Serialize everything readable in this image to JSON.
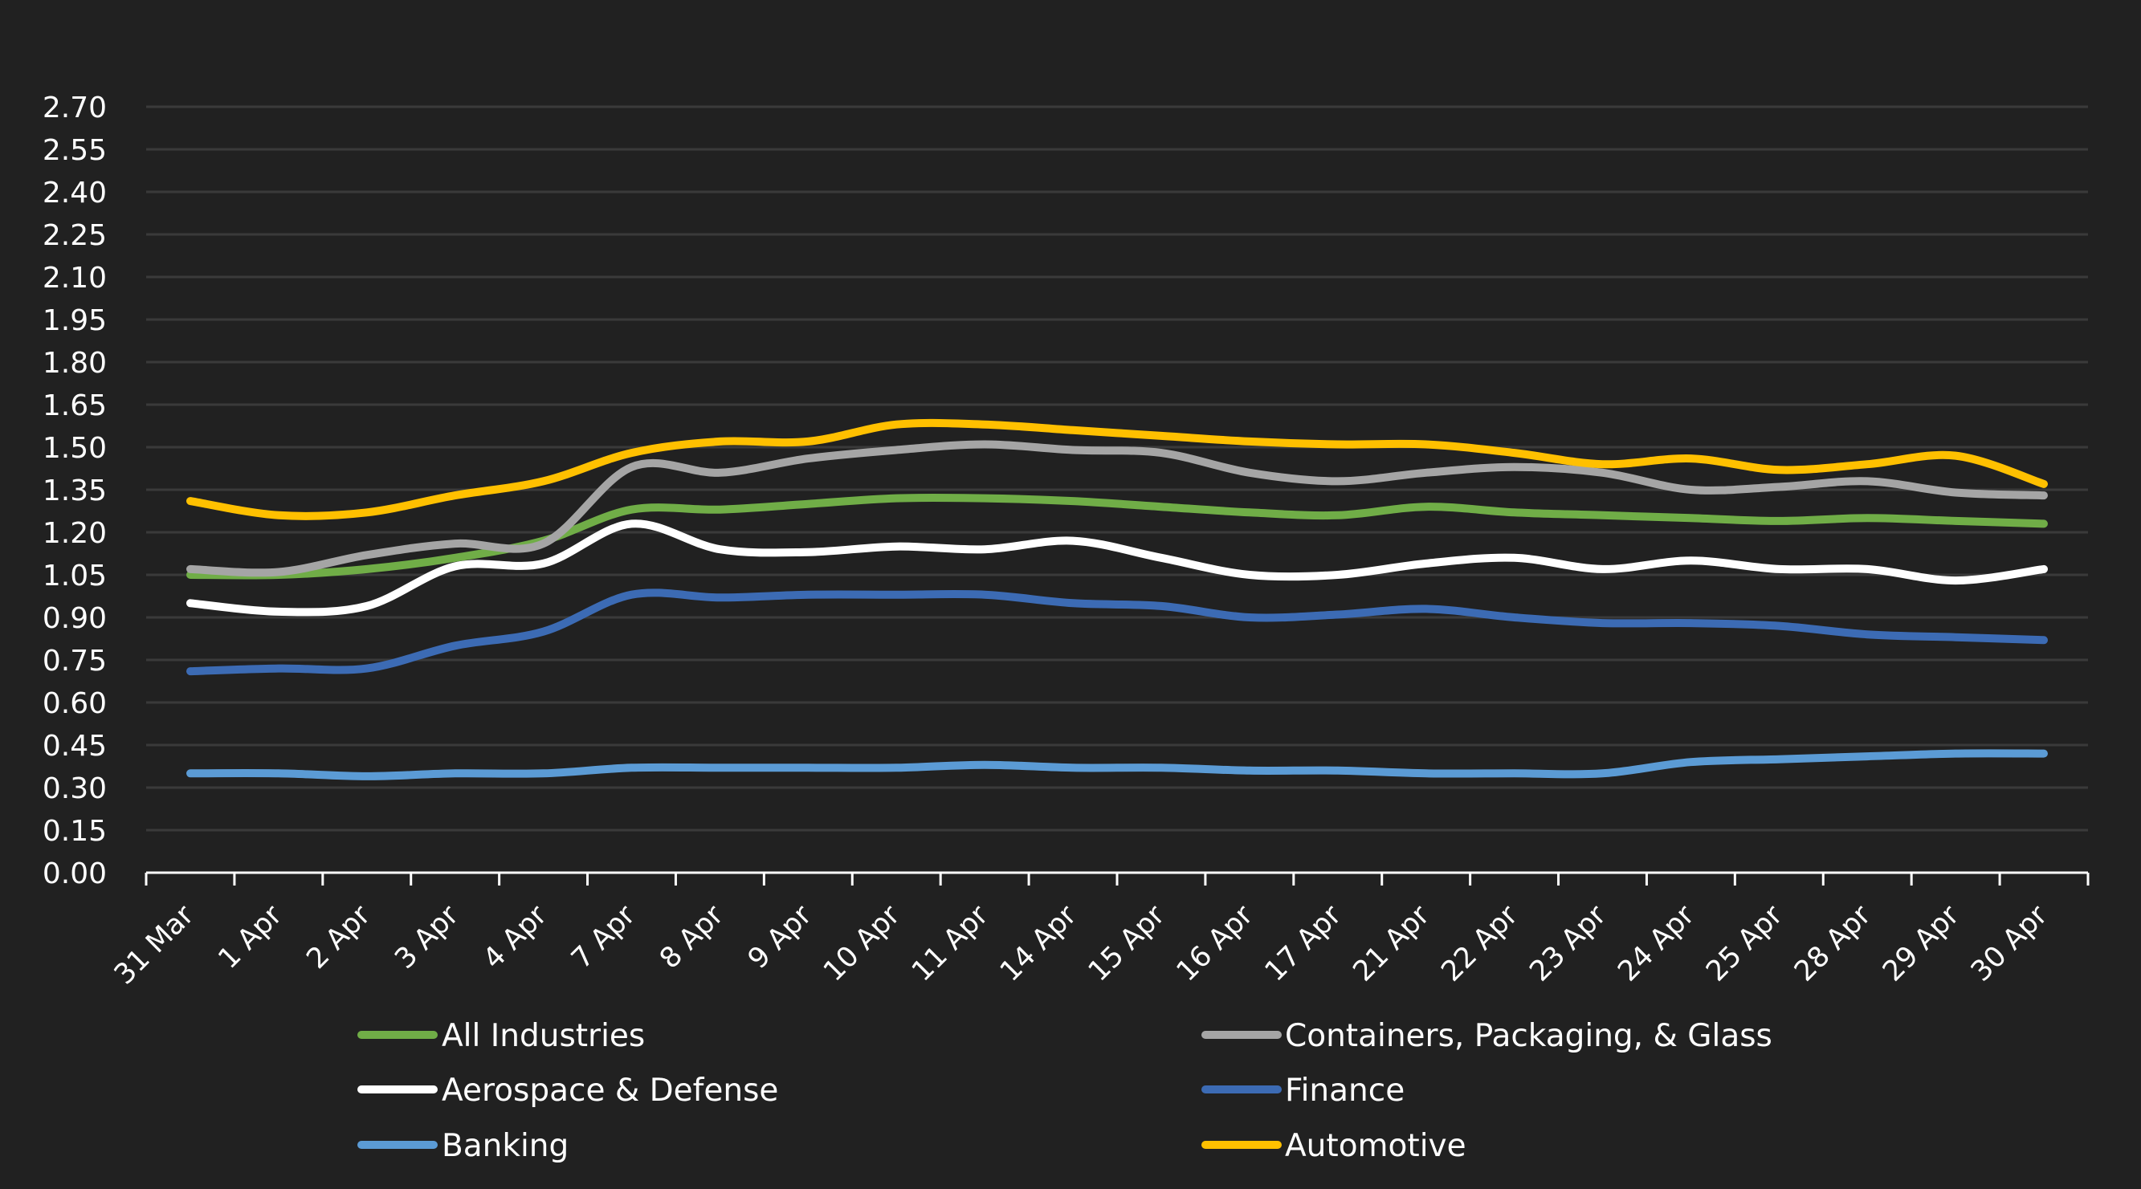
{
  "chart_data": {
    "type": "line",
    "title": "",
    "xlabel": "",
    "ylabel": "",
    "ylim": [
      0,
      2.7
    ],
    "ytick_step": 0.15,
    "yticks": [
      "0.00",
      "0.15",
      "0.30",
      "0.45",
      "0.60",
      "0.75",
      "0.90",
      "1.05",
      "1.20",
      "1.35",
      "1.50",
      "1.65",
      "1.80",
      "1.95",
      "2.10",
      "2.25",
      "2.40",
      "2.55",
      "2.70"
    ],
    "grid": true,
    "legend_position": "bottom",
    "categories": [
      "31 Mar",
      "1 Apr",
      "2 Apr",
      "3 Apr",
      "4 Apr",
      "7 Apr",
      "8 Apr",
      "9 Apr",
      "10 Apr",
      "11 Apr",
      "14 Apr",
      "15 Apr",
      "16 Apr",
      "17 Apr",
      "21 Apr",
      "22 Apr",
      "23 Apr",
      "24 Apr",
      "25 Apr",
      "28 Apr",
      "29 Apr",
      "30 Apr"
    ],
    "series": [
      {
        "name": "All Industries",
        "color": "#70AD47",
        "values": [
          1.05,
          1.05,
          1.07,
          1.11,
          1.17,
          1.28,
          1.28,
          1.3,
          1.32,
          1.32,
          1.31,
          1.29,
          1.27,
          1.26,
          1.29,
          1.27,
          1.26,
          1.25,
          1.24,
          1.25,
          1.24,
          1.23
        ]
      },
      {
        "name": "Containers, Packaging, & Glass",
        "color": "#A5A5A5",
        "values": [
          1.07,
          1.06,
          1.12,
          1.16,
          1.16,
          1.43,
          1.41,
          1.46,
          1.49,
          1.51,
          1.49,
          1.48,
          1.41,
          1.38,
          1.41,
          1.43,
          1.41,
          1.35,
          1.36,
          1.38,
          1.34,
          1.33
        ]
      },
      {
        "name": "Aerospace & Defense",
        "color": "#FFFFFF",
        "values": [
          0.95,
          0.92,
          0.94,
          1.08,
          1.09,
          1.23,
          1.14,
          1.13,
          1.15,
          1.14,
          1.17,
          1.11,
          1.05,
          1.05,
          1.09,
          1.11,
          1.07,
          1.1,
          1.07,
          1.07,
          1.03,
          1.07
        ]
      },
      {
        "name": "Finance",
        "color": "#3C6BB4",
        "values": [
          0.71,
          0.72,
          0.72,
          0.8,
          0.85,
          0.98,
          0.97,
          0.98,
          0.98,
          0.98,
          0.95,
          0.94,
          0.9,
          0.91,
          0.93,
          0.9,
          0.88,
          0.88,
          0.87,
          0.84,
          0.83,
          0.82
        ]
      },
      {
        "name": "Banking",
        "color": "#5B9BD5",
        "values": [
          0.35,
          0.35,
          0.34,
          0.35,
          0.35,
          0.37,
          0.37,
          0.37,
          0.37,
          0.38,
          0.37,
          0.37,
          0.36,
          0.36,
          0.35,
          0.35,
          0.35,
          0.39,
          0.4,
          0.41,
          0.42,
          0.42
        ]
      },
      {
        "name": "Automotive",
        "color": "#FFC000",
        "values": [
          1.31,
          1.26,
          1.27,
          1.33,
          1.38,
          1.48,
          1.52,
          1.52,
          1.58,
          1.58,
          1.56,
          1.54,
          1.52,
          1.51,
          1.51,
          1.48,
          1.44,
          1.46,
          1.42,
          1.44,
          1.47,
          1.37
        ]
      }
    ],
    "legend": {
      "left": [
        "All Industries",
        "Aerospace & Defense",
        "Banking"
      ],
      "right": [
        "Containers, Packaging, & Glass",
        "Finance",
        "Automotive"
      ]
    }
  },
  "colors": {
    "background": "#212121",
    "gridline": "#3A3A3A",
    "axis": "#FFFFFF",
    "text": "#FFFFFF"
  }
}
